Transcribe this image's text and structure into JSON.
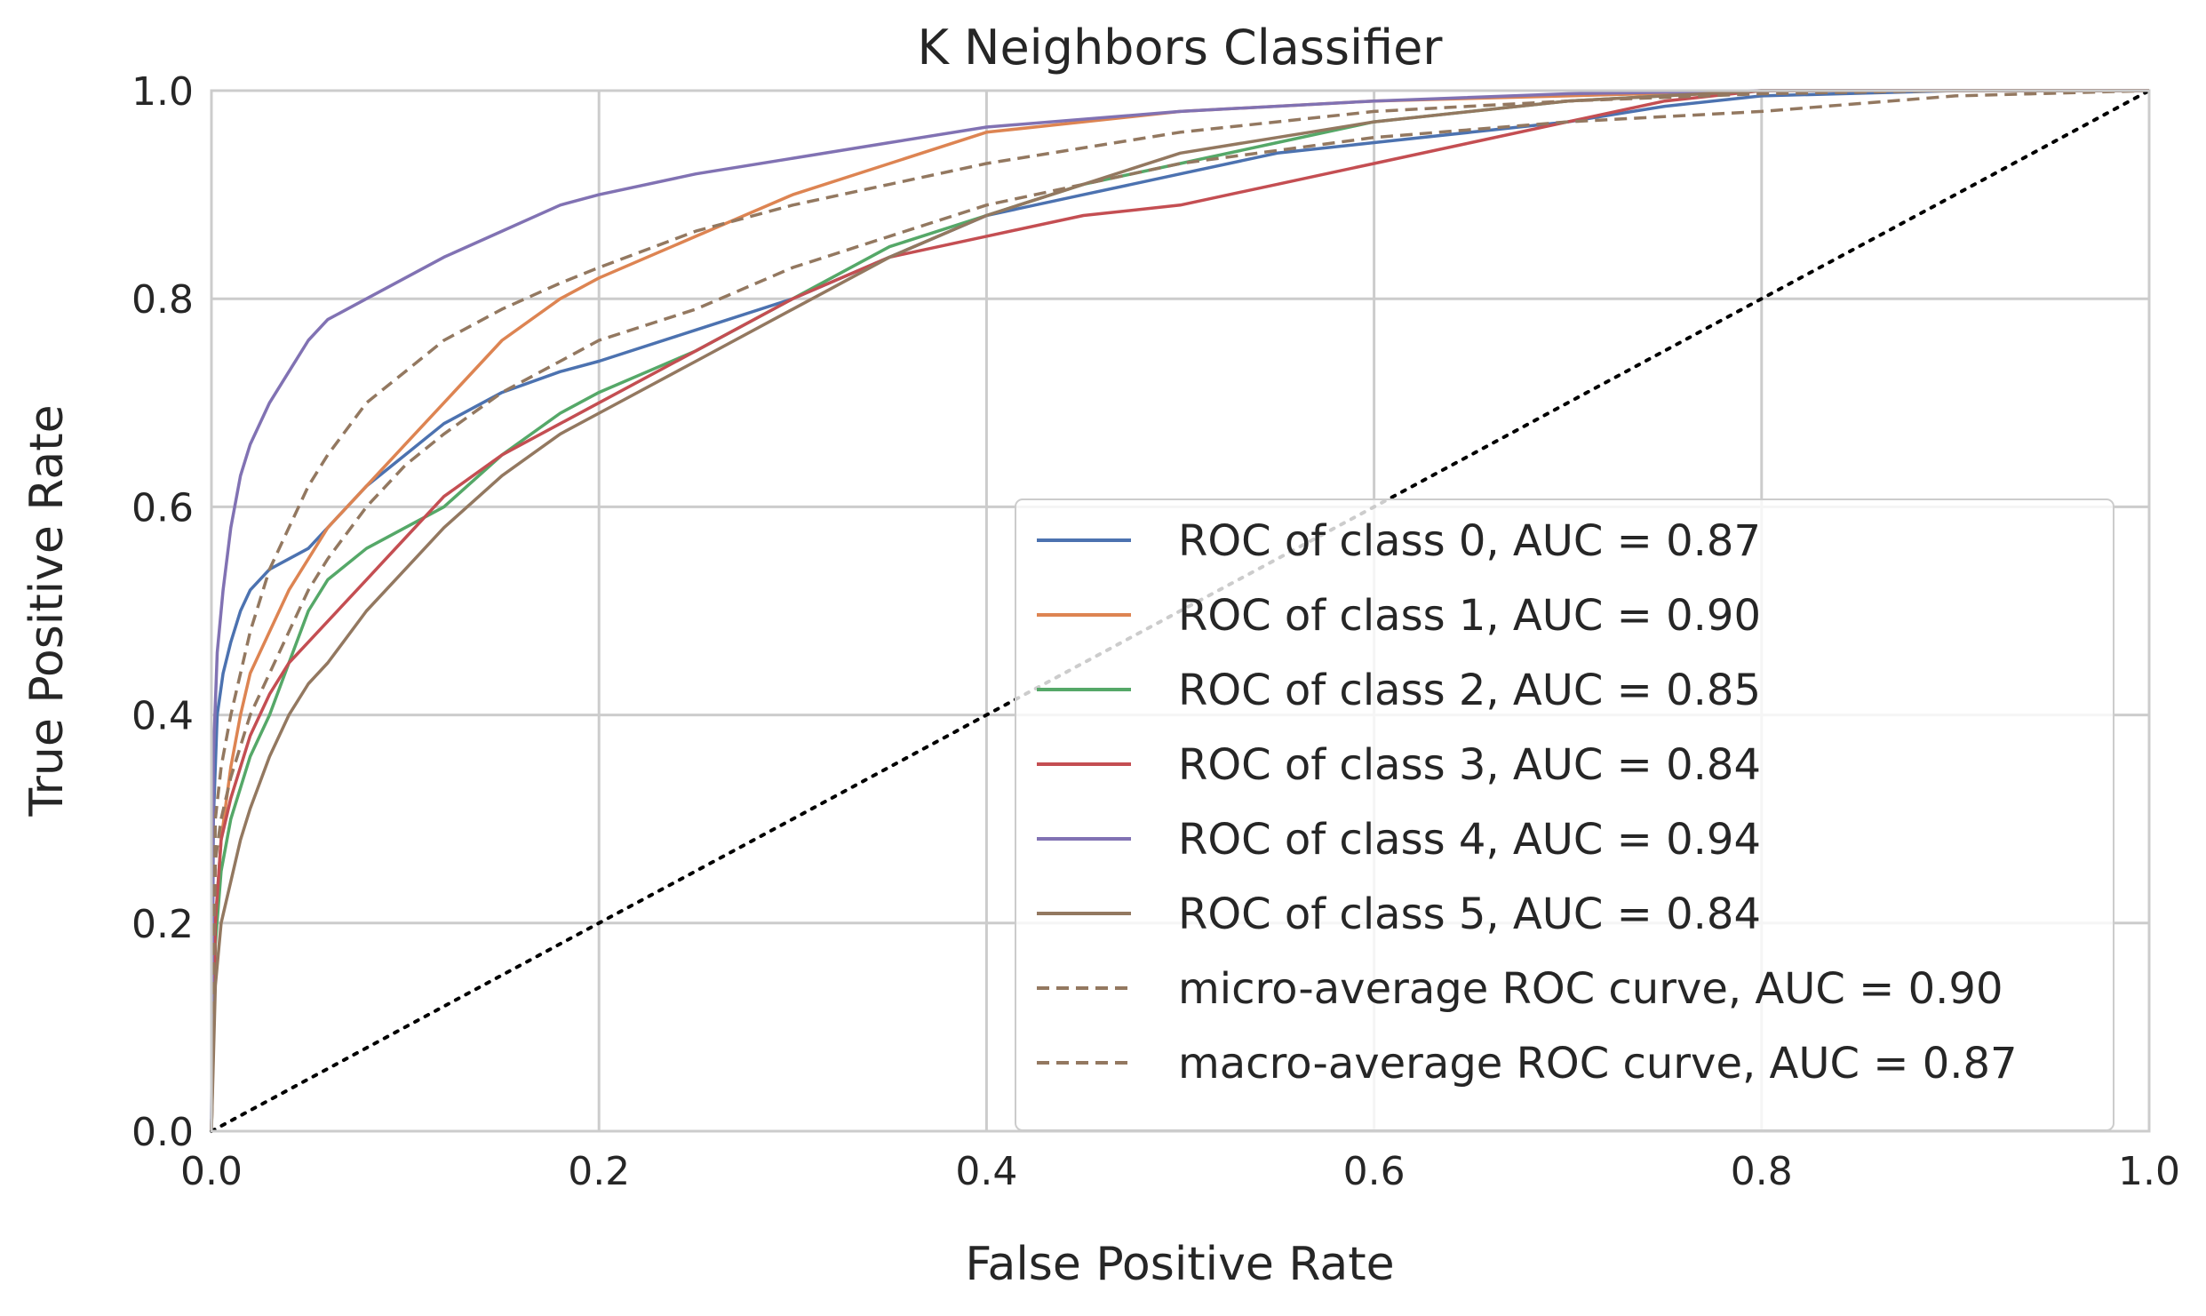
{
  "chart_data": {
    "type": "line",
    "title": "K Neighbors Classifier",
    "xlabel": "False Positive Rate",
    "ylabel": "True Positive Rate",
    "xlim": [
      0.0,
      1.0
    ],
    "ylim": [
      0.0,
      1.0
    ],
    "grid": true,
    "legend_position": "lower-right",
    "x_ticks": [
      "0.0",
      "0.2",
      "0.4",
      "0.6",
      "0.8",
      "1.0"
    ],
    "y_ticks": [
      "0.0",
      "0.2",
      "0.4",
      "0.6",
      "0.8",
      "1.0"
    ],
    "series": [
      {
        "name": "ROC of class 0, AUC = 0.87",
        "color": "#4c72b0",
        "style": "solid",
        "x": [
          0,
          0.001,
          0.003,
          0.006,
          0.01,
          0.015,
          0.02,
          0.03,
          0.04,
          0.05,
          0.06,
          0.08,
          0.1,
          0.12,
          0.15,
          0.18,
          0.2,
          0.25,
          0.3,
          0.35,
          0.4,
          0.45,
          0.5,
          0.55,
          0.6,
          0.65,
          0.7,
          0.75,
          0.8,
          0.9,
          1.0
        ],
        "y": [
          0,
          0.3,
          0.4,
          0.44,
          0.47,
          0.5,
          0.52,
          0.54,
          0.55,
          0.56,
          0.58,
          0.62,
          0.65,
          0.68,
          0.71,
          0.73,
          0.74,
          0.77,
          0.8,
          0.84,
          0.88,
          0.9,
          0.92,
          0.94,
          0.95,
          0.96,
          0.97,
          0.985,
          0.995,
          1.0,
          1.0
        ]
      },
      {
        "name": "ROC of class 1, AUC = 0.90",
        "color": "#dd8452",
        "style": "solid",
        "x": [
          0,
          0.002,
          0.005,
          0.01,
          0.015,
          0.02,
          0.03,
          0.04,
          0.05,
          0.06,
          0.08,
          0.1,
          0.12,
          0.15,
          0.18,
          0.2,
          0.25,
          0.3,
          0.35,
          0.4,
          0.45,
          0.5,
          0.6,
          0.7,
          0.8,
          0.9,
          1.0
        ],
        "y": [
          0,
          0.2,
          0.28,
          0.35,
          0.4,
          0.44,
          0.48,
          0.52,
          0.55,
          0.58,
          0.62,
          0.66,
          0.7,
          0.76,
          0.8,
          0.82,
          0.86,
          0.9,
          0.93,
          0.96,
          0.97,
          0.98,
          0.99,
          0.995,
          1.0,
          1.0,
          1.0
        ]
      },
      {
        "name": "ROC of class 2, AUC = 0.85",
        "color": "#55a868",
        "style": "solid",
        "x": [
          0,
          0.002,
          0.005,
          0.01,
          0.015,
          0.02,
          0.03,
          0.04,
          0.05,
          0.06,
          0.08,
          0.1,
          0.12,
          0.15,
          0.18,
          0.2,
          0.25,
          0.3,
          0.35,
          0.4,
          0.45,
          0.5,
          0.55,
          0.6,
          0.65,
          0.7,
          0.8,
          0.9,
          1.0
        ],
        "y": [
          0,
          0.18,
          0.25,
          0.3,
          0.33,
          0.36,
          0.4,
          0.45,
          0.5,
          0.53,
          0.56,
          0.58,
          0.6,
          0.65,
          0.69,
          0.71,
          0.75,
          0.8,
          0.85,
          0.88,
          0.91,
          0.93,
          0.95,
          0.97,
          0.98,
          0.99,
          1.0,
          1.0,
          1.0
        ]
      },
      {
        "name": "ROC of class 3, AUC = 0.84",
        "color": "#c44e52",
        "style": "solid",
        "x": [
          0,
          0.002,
          0.005,
          0.01,
          0.015,
          0.02,
          0.03,
          0.04,
          0.05,
          0.06,
          0.08,
          0.1,
          0.12,
          0.15,
          0.18,
          0.2,
          0.25,
          0.3,
          0.35,
          0.4,
          0.45,
          0.5,
          0.55,
          0.6,
          0.65,
          0.7,
          0.75,
          0.8,
          0.9,
          1.0
        ],
        "y": [
          0,
          0.2,
          0.28,
          0.32,
          0.35,
          0.38,
          0.42,
          0.45,
          0.47,
          0.49,
          0.53,
          0.57,
          0.61,
          0.65,
          0.68,
          0.7,
          0.75,
          0.8,
          0.84,
          0.86,
          0.88,
          0.89,
          0.91,
          0.93,
          0.95,
          0.97,
          0.99,
          1.0,
          1.0,
          1.0
        ]
      },
      {
        "name": "ROC of class 4, AUC = 0.94",
        "color": "#8172b3",
        "style": "solid",
        "x": [
          0,
          0.001,
          0.003,
          0.006,
          0.01,
          0.015,
          0.02,
          0.03,
          0.04,
          0.05,
          0.06,
          0.08,
          0.1,
          0.12,
          0.15,
          0.18,
          0.2,
          0.25,
          0.3,
          0.35,
          0.4,
          0.5,
          0.6,
          0.7,
          0.8,
          0.9,
          1.0
        ],
        "y": [
          0,
          0.36,
          0.46,
          0.52,
          0.58,
          0.63,
          0.66,
          0.7,
          0.73,
          0.76,
          0.78,
          0.8,
          0.82,
          0.84,
          0.865,
          0.89,
          0.9,
          0.92,
          0.935,
          0.95,
          0.965,
          0.98,
          0.99,
          0.997,
          1.0,
          1.0,
          1.0
        ]
      },
      {
        "name": "ROC of class 5, AUC = 0.84",
        "color": "#937860",
        "style": "solid",
        "x": [
          0,
          0.002,
          0.005,
          0.01,
          0.015,
          0.02,
          0.03,
          0.04,
          0.05,
          0.06,
          0.08,
          0.1,
          0.12,
          0.15,
          0.18,
          0.2,
          0.25,
          0.3,
          0.35,
          0.4,
          0.45,
          0.5,
          0.6,
          0.7,
          0.75,
          0.8,
          0.9,
          1.0
        ],
        "y": [
          0,
          0.14,
          0.2,
          0.24,
          0.28,
          0.31,
          0.36,
          0.4,
          0.43,
          0.45,
          0.5,
          0.54,
          0.58,
          0.63,
          0.67,
          0.69,
          0.74,
          0.79,
          0.84,
          0.88,
          0.91,
          0.94,
          0.97,
          0.99,
          0.995,
          1.0,
          1.0,
          1.0
        ]
      },
      {
        "name": "micro-average ROC curve, AUC = 0.90",
        "color": "#937860",
        "style": "dashed",
        "x": [
          0,
          0.002,
          0.005,
          0.01,
          0.015,
          0.02,
          0.03,
          0.04,
          0.05,
          0.06,
          0.08,
          0.1,
          0.12,
          0.15,
          0.18,
          0.2,
          0.25,
          0.3,
          0.35,
          0.4,
          0.45,
          0.5,
          0.6,
          0.7,
          0.8,
          0.9,
          1.0
        ],
        "y": [
          0,
          0.3,
          0.35,
          0.4,
          0.44,
          0.48,
          0.54,
          0.58,
          0.62,
          0.65,
          0.7,
          0.73,
          0.76,
          0.79,
          0.815,
          0.83,
          0.865,
          0.89,
          0.91,
          0.93,
          0.945,
          0.96,
          0.98,
          0.99,
          0.997,
          1.0,
          1.0
        ]
      },
      {
        "name": "macro-average ROC curve, AUC = 0.87",
        "color": "#937860",
        "style": "dashed",
        "x": [
          0,
          0.002,
          0.005,
          0.01,
          0.015,
          0.02,
          0.03,
          0.04,
          0.05,
          0.06,
          0.08,
          0.1,
          0.12,
          0.15,
          0.18,
          0.2,
          0.25,
          0.3,
          0.35,
          0.4,
          0.45,
          0.5,
          0.6,
          0.7,
          0.8,
          0.9,
          1.0
        ],
        "y": [
          0,
          0.26,
          0.3,
          0.34,
          0.37,
          0.4,
          0.44,
          0.48,
          0.52,
          0.55,
          0.6,
          0.64,
          0.67,
          0.71,
          0.74,
          0.76,
          0.79,
          0.83,
          0.86,
          0.89,
          0.91,
          0.93,
          0.955,
          0.97,
          0.98,
          0.995,
          1.0
        ]
      },
      {
        "name": "",
        "color": "#000000",
        "style": "dotted",
        "x": [
          0,
          1
        ],
        "y": [
          0,
          1
        ]
      }
    ]
  }
}
